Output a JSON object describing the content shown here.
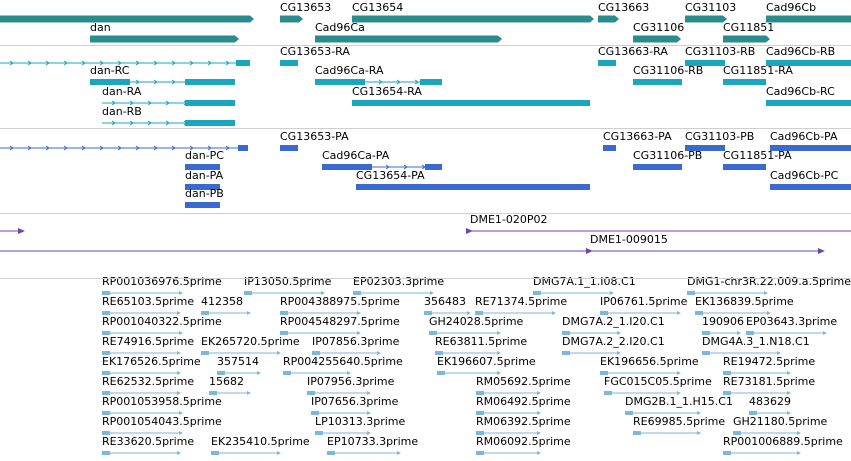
{
  "colors": {
    "gene": "#2a8c8c",
    "transcript_dna": "#1aa6bf",
    "protein": "#3a6acf",
    "marker": "#6a47b0",
    "est": "#7ab8dc",
    "separator": "#cfcfcf"
  },
  "tracks": {
    "genes": {
      "color": "gene",
      "features": [
        {
          "label": "",
          "start": 0,
          "end": 250,
          "exons": [
            [
              0,
              250
            ]
          ]
        },
        {
          "label": "CG13653",
          "start": 280,
          "end": 299,
          "exons": [
            [
              280,
              299
            ]
          ]
        },
        {
          "label": "CG13654",
          "start": 352,
          "end": 590,
          "exons": [
            [
              352,
              590
            ]
          ]
        },
        {
          "label": "CG13663",
          "start": 598,
          "end": 615,
          "exons": [
            [
              598,
              615
            ]
          ]
        },
        {
          "label": "CG31103",
          "start": 685,
          "end": 723,
          "exons": [
            [
              685,
              723
            ]
          ]
        },
        {
          "label": "Cad96Cb",
          "start": 766,
          "end": 851,
          "exons": [
            [
              766,
              851
            ]
          ]
        },
        {
          "label": "dan",
          "start": 90,
          "end": 235,
          "exons": [
            [
              90,
              235
            ]
          ]
        },
        {
          "label": "Cad96Ca",
          "start": 315,
          "end": 498,
          "exons": [
            [
              315,
              498
            ]
          ]
        },
        {
          "label": "CG31106",
          "start": 633,
          "end": 677,
          "exons": [
            [
              633,
              677
            ]
          ]
        },
        {
          "label": "CG11851",
          "start": 723,
          "end": 766,
          "exons": [
            [
              723,
              766
            ]
          ]
        }
      ]
    },
    "transcripts": {
      "color": "transcript_dna",
      "features": [
        {
          "label": "",
          "start": 0,
          "end": 250,
          "exons": [
            [
              236,
              250
            ]
          ]
        },
        {
          "label": "CG13653-RA",
          "start": 280,
          "end": 298,
          "exons": [
            [
              280,
              298
            ]
          ]
        },
        {
          "label": "CG13663-RA",
          "start": 598,
          "end": 616,
          "exons": [
            [
              598,
              616
            ]
          ]
        },
        {
          "label": "CG31103-RB",
          "start": 685,
          "end": 725,
          "exons": [
            [
              685,
              725
            ]
          ]
        },
        {
          "label": "Cad96Cb-RB",
          "start": 766,
          "end": 851,
          "exons": [
            [
              766,
              851
            ]
          ]
        },
        {
          "label": "dan-RC",
          "start": 90,
          "end": 235,
          "exons": [
            [
              90,
              130
            ],
            [
              185,
              235
            ]
          ]
        },
        {
          "label": "Cad96Ca-RA",
          "start": 315,
          "end": 442,
          "exons": [
            [
              315,
              365
            ],
            [
              420,
              442
            ]
          ]
        },
        {
          "label": "CG31106-RB",
          "start": 633,
          "end": 682,
          "exons": [
            [
              633,
              682
            ]
          ]
        },
        {
          "label": "CG11851-RA",
          "start": 723,
          "end": 766,
          "exons": [
            [
              723,
              766
            ]
          ]
        },
        {
          "label": "dan-RA",
          "start": 102,
          "end": 235,
          "exons": [
            [
              185,
              235
            ]
          ]
        },
        {
          "label": "CG13654-RA",
          "start": 352,
          "end": 590,
          "exons": [
            [
              352,
              590
            ]
          ]
        },
        {
          "label": "Cad96Cb-RC",
          "start": 766,
          "end": 851,
          "exons": [
            [
              766,
              851
            ]
          ]
        },
        {
          "label": "dan-RB",
          "start": 102,
          "end": 235,
          "exons": [
            [
              185,
              235
            ]
          ]
        }
      ]
    },
    "proteins": {
      "color": "protein",
      "features": [
        {
          "label": "",
          "start": 0,
          "end": 248,
          "exons": [
            [
              238,
              248
            ]
          ]
        },
        {
          "label": "CG13653-PA",
          "start": 280,
          "end": 298,
          "exons": [
            [
              280,
              298
            ]
          ]
        },
        {
          "label": "CG13663-PA",
          "start": 603,
          "end": 616,
          "exons": [
            [
              603,
              616
            ]
          ]
        },
        {
          "label": "CG31103-PB",
          "start": 685,
          "end": 725,
          "exons": [
            [
              685,
              725
            ]
          ]
        },
        {
          "label": "Cad96Cb-PA",
          "start": 770,
          "end": 851,
          "exons": [
            [
              770,
              851
            ]
          ]
        },
        {
          "label": "dan-PC",
          "start": 185,
          "end": 220,
          "exons": [
            [
              185,
              220
            ]
          ]
        },
        {
          "label": "Cad96Ca-PA",
          "start": 322,
          "end": 442,
          "exons": [
            [
              322,
              372
            ],
            [
              425,
              442
            ]
          ]
        },
        {
          "label": "CG31106-PB",
          "start": 633,
          "end": 682,
          "exons": [
            [
              633,
              682
            ]
          ]
        },
        {
          "label": "CG11851-PA",
          "start": 723,
          "end": 766,
          "exons": [
            [
              723,
              766
            ]
          ]
        },
        {
          "label": "dan-PA",
          "start": 185,
          "end": 220,
          "exons": [
            [
              185,
              220
            ]
          ]
        },
        {
          "label": "CG13654-PA",
          "start": 356,
          "end": 590,
          "exons": [
            [
              356,
              590
            ]
          ]
        },
        {
          "label": "Cad96Cb-PC",
          "start": 770,
          "end": 851,
          "exons": [
            [
              770,
              851
            ]
          ]
        },
        {
          "label": "dan-PB",
          "start": 185,
          "end": 220,
          "exons": [
            [
              185,
              220
            ]
          ]
        }
      ]
    },
    "markers": {
      "color": "marker",
      "features": [
        {
          "label": "",
          "start": 0,
          "end": 22,
          "exons": []
        },
        {
          "label": "DME1-020P02",
          "start": 470,
          "end": 851,
          "exons": []
        },
        {
          "label": "",
          "start": 0,
          "end": 822,
          "exons": []
        },
        {
          "label": "DME1-009015",
          "start": 590,
          "end": 822,
          "exons": []
        }
      ]
    },
    "ests": {
      "color": "est",
      "features": [
        {
          "label": "RP001036976.5prime",
          "start": 102,
          "end": 190
        },
        {
          "label": "IP13050.5prime",
          "start": 244,
          "end": 330
        },
        {
          "label": "EP02303.3prime",
          "start": 353,
          "end": 440
        },
        {
          "label": "DMG7A.1_1.I08.C1",
          "start": 533,
          "end": 620
        },
        {
          "label": "DMG1-chr3R.22.009.a.5prime",
          "start": 687,
          "end": 851
        },
        {
          "label": "RE65103.5prime",
          "start": 102,
          "end": 180
        },
        {
          "label": "412358",
          "start": 201,
          "end": 250
        },
        {
          "label": "RP004388975.5prime",
          "start": 280,
          "end": 360
        },
        {
          "label": "356483",
          "start": 424,
          "end": 470
        },
        {
          "label": "RE71374.5prime",
          "start": 475,
          "end": 560
        },
        {
          "label": "IP06761.5prime",
          "start": 600,
          "end": 680
        },
        {
          "label": "EK136839.5prime",
          "start": 695,
          "end": 770
        },
        {
          "label": "RP001040322.5prime",
          "start": 102,
          "end": 190
        },
        {
          "label": "RP004548297.5prime",
          "start": 280,
          "end": 360
        },
        {
          "label": "GH24028.5prime",
          "start": 429,
          "end": 500
        },
        {
          "label": "DMG7A.2_1.I20.C1",
          "start": 562,
          "end": 620
        },
        {
          "label": "190906",
          "start": 702,
          "end": 740
        },
        {
          "label": "EP03643.3prime",
          "start": 746,
          "end": 830
        },
        {
          "label": "RE74916.5prime",
          "start": 102,
          "end": 180
        },
        {
          "label": "EK265720.5prime",
          "start": 201,
          "end": 280
        },
        {
          "label": "IP07856.3prime",
          "start": 312,
          "end": 380
        },
        {
          "label": "RE63811.5prime",
          "start": 435,
          "end": 500
        },
        {
          "label": "DMG7A.2_2.I20.C1",
          "start": 562,
          "end": 620
        },
        {
          "label": "DMG4A.3_1.N18.C1",
          "start": 702,
          "end": 780
        },
        {
          "label": "EK176526.5prime",
          "start": 102,
          "end": 180
        },
        {
          "label": "357514",
          "start": 217,
          "end": 260
        },
        {
          "label": "RP004255640.5prime",
          "start": 283,
          "end": 350
        },
        {
          "label": "EK196607.5prime",
          "start": 437,
          "end": 500
        },
        {
          "label": "EK196656.5prime",
          "start": 600,
          "end": 680
        },
        {
          "label": "RE19472.5prime",
          "start": 723,
          "end": 790
        },
        {
          "label": "RE62532.5prime",
          "start": 102,
          "end": 180
        },
        {
          "label": "15682",
          "start": 209,
          "end": 250
        },
        {
          "label": "IP07956.3prime",
          "start": 307,
          "end": 370
        },
        {
          "label": "RM05692.5prime",
          "start": 476,
          "end": 540
        },
        {
          "label": "FGC015C05.5prime",
          "start": 604,
          "end": 680
        },
        {
          "label": "RE73181.5prime",
          "start": 723,
          "end": 790
        },
        {
          "label": "RP001053958.5prime",
          "start": 102,
          "end": 190
        },
        {
          "label": "IP07656.3prime",
          "start": 311,
          "end": 370
        },
        {
          "label": "RM06492.5prime",
          "start": 476,
          "end": 540
        },
        {
          "label": "DMG2B.1_1.H15.C1",
          "start": 625,
          "end": 700
        },
        {
          "label": "483629",
          "start": 749,
          "end": 790
        },
        {
          "label": "RP001054043.5prime",
          "start": 102,
          "end": 190
        },
        {
          "label": "LP10313.3prime",
          "start": 315,
          "end": 370
        },
        {
          "label": "RM06392.5prime",
          "start": 476,
          "end": 540
        },
        {
          "label": "RE69985.5prime",
          "start": 633,
          "end": 700
        },
        {
          "label": "GH21180.5prime",
          "start": 733,
          "end": 800
        },
        {
          "label": "RE33620.5prime",
          "start": 102,
          "end": 180
        },
        {
          "label": "EK235410.5prime",
          "start": 211,
          "end": 280
        },
        {
          "label": "EP10733.3prime",
          "start": 327,
          "end": 400
        },
        {
          "label": "RM06092.5prime",
          "start": 476,
          "end": 540
        },
        {
          "label": "RP001006889.5prime",
          "start": 723,
          "end": 800
        }
      ]
    }
  }
}
